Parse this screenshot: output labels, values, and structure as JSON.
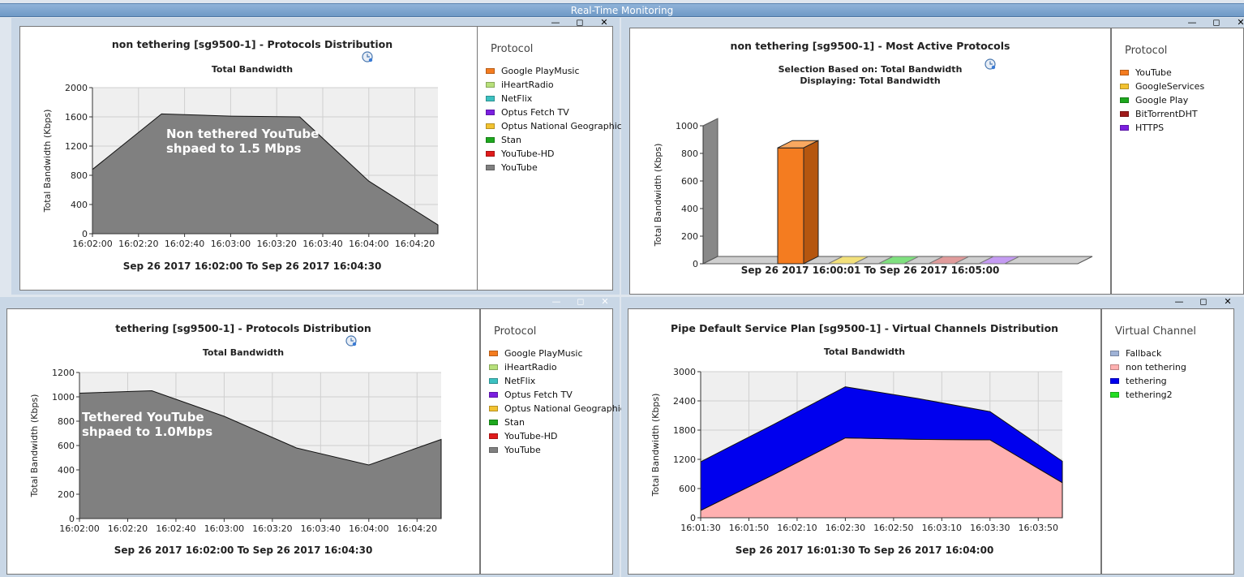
{
  "window": {
    "title": "Real-Time Monitoring"
  },
  "panels": {
    "p1": {
      "title": "non tethering [sg9500-1] - Protocols Distribution",
      "subtitle": "Total Bandwidth",
      "range": "Sep 26 2017  16:02:00  To  Sep 26 2017  16:04:30",
      "annotation": [
        "Non tethered YouTube",
        "shpaed to 1.5 Mbps"
      ],
      "legend_title": "Protocol",
      "legend": [
        {
          "label": "Google PlayMusic",
          "color": "#f47c20"
        },
        {
          "label": "iHeartRadio",
          "color": "#b7e07a"
        },
        {
          "label": "NetFlix",
          "color": "#3cc1c1"
        },
        {
          "label": "Optus Fetch TV",
          "color": "#7b1fe0"
        },
        {
          "label": "Optus National Geographic",
          "color": "#f2c230"
        },
        {
          "label": "Stan",
          "color": "#1ea81e"
        },
        {
          "label": "YouTube-HD",
          "color": "#e01b1b"
        },
        {
          "label": "YouTube",
          "color": "#808080"
        }
      ]
    },
    "p2": {
      "title": "non tethering [sg9500-1] - Most Active Protocols",
      "subtitle1": "Selection Based on: Total Bandwidth",
      "subtitle2": "Displaying: Total Bandwidth",
      "range": "Sep 26 2017  16:00:01  To  Sep 26 2017  16:05:00",
      "legend_title": "Protocol",
      "legend": [
        {
          "label": "YouTube",
          "color": "#f47c20"
        },
        {
          "label": "GoogleServices",
          "color": "#f2c230"
        },
        {
          "label": "Google Play",
          "color": "#1ea81e"
        },
        {
          "label": "BitTorrentDHT",
          "color": "#a01b1b"
        },
        {
          "label": "HTTPS",
          "color": "#7b1fe0"
        }
      ]
    },
    "p3": {
      "title": "tethering [sg9500-1] - Protocols Distribution",
      "subtitle": "Total Bandwidth",
      "range": "Sep 26 2017  16:02:00  To  Sep 26 2017  16:04:30",
      "annotation": [
        "Tethered YouTube",
        "shpaed to 1.0Mbps"
      ],
      "legend_title": "Protocol",
      "legend": [
        {
          "label": "Google PlayMusic",
          "color": "#f47c20"
        },
        {
          "label": "iHeartRadio",
          "color": "#b7e07a"
        },
        {
          "label": "NetFlix",
          "color": "#3cc1c1"
        },
        {
          "label": "Optus Fetch TV",
          "color": "#7b1fe0"
        },
        {
          "label": "Optus National Geographic",
          "color": "#f2c230"
        },
        {
          "label": "Stan",
          "color": "#1ea81e"
        },
        {
          "label": "YouTube-HD",
          "color": "#e01b1b"
        },
        {
          "label": "YouTube",
          "color": "#808080"
        }
      ]
    },
    "p4": {
      "title": "Pipe Default Service Plan [sg9500-1] - Virtual Channels Distribution",
      "subtitle": "Total Bandwidth",
      "range": "Sep 26 2017  16:01:30  To  Sep 26 2017  16:04:00",
      "legend_title": "Virtual Channel",
      "legend": [
        {
          "label": "Fallback",
          "color": "#9fb2d6"
        },
        {
          "label": "non tethering",
          "color": "#ffb0b0"
        },
        {
          "label": "tethering",
          "color": "#0000ee"
        },
        {
          "label": "tethering2",
          "color": "#22dd22"
        }
      ]
    }
  },
  "chart_data": [
    {
      "type": "area",
      "title": "non tethering [sg9500-1] - Protocols Distribution",
      "subtitle": "Total Bandwidth",
      "ylabel": "Total Bandwidth (Kbps)",
      "ylim": [
        0,
        2000
      ],
      "yticks": [
        0,
        400,
        800,
        1200,
        1600,
        2000
      ],
      "x": [
        "16:02:00",
        "16:02:30",
        "16:03:00",
        "16:03:30",
        "16:04:00",
        "16:04:30"
      ],
      "xticks": [
        "16:02:00",
        "16:02:20",
        "16:02:40",
        "16:03:00",
        "16:03:20",
        "16:03:40",
        "16:04:00",
        "16:04:20"
      ],
      "grid": true,
      "series": [
        {
          "name": "YouTube",
          "color": "#808080",
          "values": [
            880,
            1640,
            1610,
            1600,
            720,
            120
          ]
        }
      ]
    },
    {
      "type": "bar",
      "title": "non tethering [sg9500-1] - Most Active Protocols",
      "ylabel": "Total Bandwidth (Kbps)",
      "ylim": [
        0,
        1000
      ],
      "yticks": [
        0,
        200,
        400,
        600,
        800,
        1000
      ],
      "categories": [
        "YouTube",
        "GoogleServices",
        "Google Play",
        "BitTorrentDHT",
        "HTTPS"
      ],
      "values": [
        840,
        0,
        0,
        0,
        0
      ],
      "colors": [
        "#f47c20",
        "#f2e07a",
        "#7fe07f",
        "#e09b9b",
        "#c49bf2"
      ]
    },
    {
      "type": "area",
      "title": "tethering [sg9500-1] - Protocols Distribution",
      "subtitle": "Total Bandwidth",
      "ylabel": "Total Bandwidth (Kbps)",
      "ylim": [
        0,
        1200
      ],
      "yticks": [
        0,
        200,
        400,
        600,
        800,
        1000,
        1200
      ],
      "x": [
        "16:02:00",
        "16:02:30",
        "16:03:00",
        "16:03:30",
        "16:04:00",
        "16:04:30"
      ],
      "xticks": [
        "16:02:00",
        "16:02:20",
        "16:02:40",
        "16:03:00",
        "16:03:20",
        "16:03:40",
        "16:04:00",
        "16:04:20"
      ],
      "grid": true,
      "series": [
        {
          "name": "YouTube",
          "color": "#808080",
          "values": [
            1030,
            1050,
            840,
            580,
            440,
            650
          ]
        }
      ]
    },
    {
      "type": "area",
      "stacked": true,
      "title": "Pipe Default Service Plan [sg9500-1] - Virtual Channels Distribution",
      "subtitle": "Total Bandwidth",
      "ylabel": "Total Bandwidth (Kbps)",
      "ylim": [
        0,
        3000
      ],
      "yticks": [
        0,
        600,
        1200,
        1800,
        2400,
        3000
      ],
      "x": [
        "16:01:30",
        "16:02:00",
        "16:02:30",
        "16:03:00",
        "16:03:30",
        "16:04:00"
      ],
      "xticks": [
        "16:01:30",
        "16:01:50",
        "16:02:10",
        "16:02:30",
        "16:02:50",
        "16:03:10",
        "16:03:30",
        "16:03:50"
      ],
      "grid": true,
      "series": [
        {
          "name": "non tethering",
          "color": "#ffb0b0",
          "values": [
            150,
            880,
            1640,
            1610,
            1600,
            720
          ]
        },
        {
          "name": "tethering",
          "color": "#0000ee",
          "values": [
            1000,
            1030,
            1050,
            840,
            580,
            440
          ]
        }
      ]
    }
  ]
}
